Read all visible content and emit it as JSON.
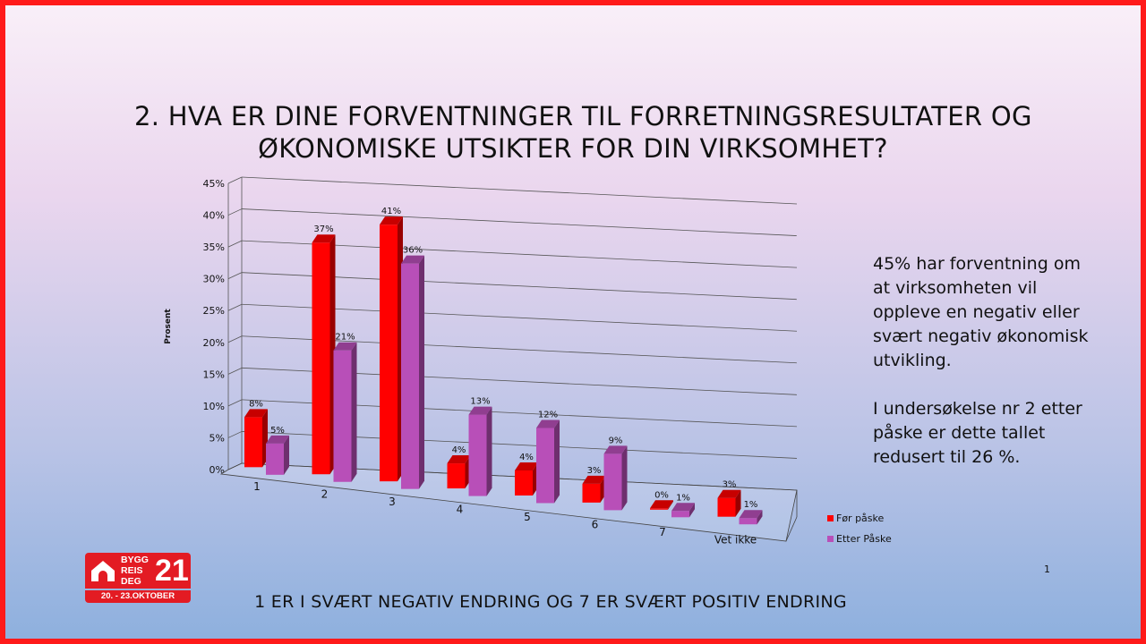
{
  "slide": {
    "title_lines": [
      "2. HVA ER DINE FORVENTNINGER TIL FORRETNINGSRESULTATER OG",
      "ØKONOMISKE UTSIKTER FOR DIN VIRKSOMHET?"
    ],
    "side_paragraphs": [
      "45% har forventning om at virksomheten vil oppleve en negativ eller svært negativ økonomisk utvikling.",
      "I undersøkelse nr 2 etter påske er dette tallet redusert til 26 %."
    ],
    "footer": "1 ER I SVÆRT NEGATIV ENDRING OG 7 ER SVÆRT POSITIV ENDRING",
    "page_number": "1",
    "logo": {
      "words": [
        "BYGG",
        "REIS",
        "DEG"
      ],
      "number": "21",
      "dates": "20. - 23.OKTOBER"
    }
  },
  "chart_data": {
    "type": "bar",
    "categories": [
      "1",
      "2",
      "3",
      "4",
      "5",
      "6",
      "7",
      "Vet ikke"
    ],
    "series": [
      {
        "name": "Før påske",
        "color": "#ff0000",
        "values": [
          8,
          37,
          41,
          4,
          4,
          3,
          0,
          3
        ],
        "labels": [
          "8%",
          "37%",
          "41%",
          "4%",
          "4%",
          "3%",
          "0%",
          "3%"
        ]
      },
      {
        "name": "Etter Påske",
        "color": "#b84fb8",
        "values": [
          5,
          21,
          36,
          13,
          12,
          9,
          1,
          1
        ],
        "labels": [
          "5%",
          "21%",
          "36%",
          "13%",
          "12%",
          "9%",
          "1%",
          "1%"
        ]
      }
    ],
    "ylabel": "Prosent",
    "ylim": [
      0,
      45
    ],
    "yticks": [
      "0%",
      "5%",
      "10%",
      "15%",
      "20%",
      "25%",
      "30%",
      "35%",
      "40%",
      "45%"
    ],
    "grid": true,
    "legend_position": "right"
  }
}
